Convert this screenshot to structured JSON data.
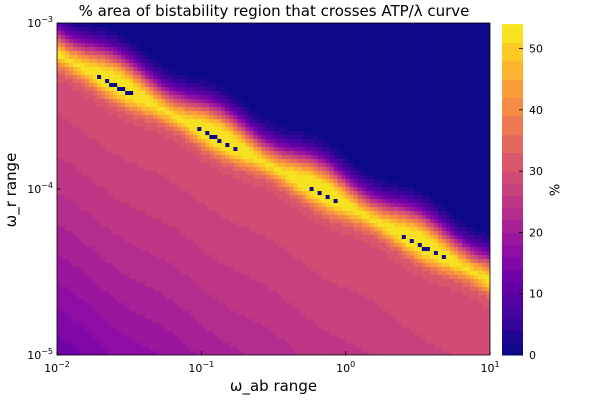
{
  "chart_data": {
    "type": "heatmap",
    "title": "% area of bistability region that crosses ATP/λ curve",
    "xlabel": "ω_ab range",
    "ylabel": "ω_r range",
    "colorbar_label": "%",
    "x_scale": "log",
    "y_scale": "log",
    "xlim": [
      0.01,
      10
    ],
    "ylim": [
      1e-05,
      0.001
    ],
    "x_ticks": [
      {
        "value": 0.01,
        "base": "10",
        "exp": "−2"
      },
      {
        "value": 0.1,
        "base": "10",
        "exp": "−1"
      },
      {
        "value": 1,
        "base": "10",
        "exp": "0"
      },
      {
        "value": 10,
        "base": "10",
        "exp": "1"
      }
    ],
    "y_ticks": [
      {
        "value": 1e-05,
        "base": "10",
        "exp": "−5"
      },
      {
        "value": 0.0001,
        "base": "10",
        "exp": "−4"
      },
      {
        "value": 0.001,
        "base": "10",
        "exp": "−3"
      }
    ],
    "colorbar_range": [
      0,
      54
    ],
    "colorbar_ticks": [
      0,
      10,
      20,
      30,
      40,
      50
    ],
    "colormap": "plasma",
    "grid": false,
    "ridge_peak_value": 54,
    "ridge_points": [
      {
        "x": 0.01,
        "y": 0.00065
      },
      {
        "x": 10,
        "y": 2.8e-05
      }
    ],
    "upper_region_value": 0,
    "bottom_left_value": 10,
    "value_at_ridge_bottom_band": 30,
    "contour_levels": [
      0,
      2,
      4,
      6,
      8,
      10,
      12,
      14,
      16,
      18,
      20,
      22,
      24,
      26,
      28,
      30,
      33,
      36,
      39,
      42,
      45,
      48,
      51,
      54
    ]
  }
}
